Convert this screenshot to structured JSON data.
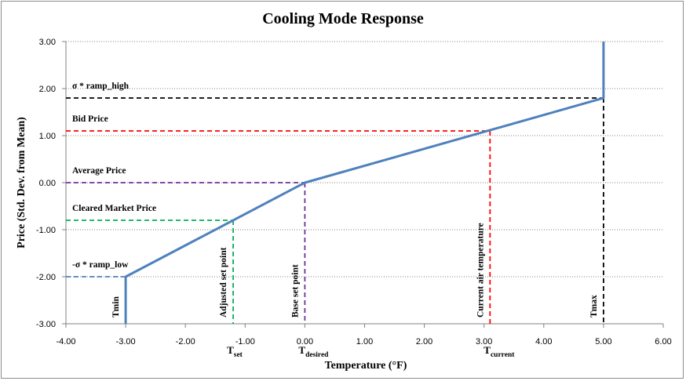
{
  "chart_data": {
    "type": "line",
    "title": "Cooling Mode Response",
    "xlabel": "Temperature (°F)",
    "ylabel": "Price (Std. Dev. from Mean)",
    "xlim": [
      -4,
      6
    ],
    "ylim": [
      -3,
      3
    ],
    "x_ticks": [
      "-4.00",
      "-3.00",
      "-2.00",
      "-1.00",
      "0.00",
      "1.00",
      "2.00",
      "3.00",
      "4.00",
      "5.00",
      "6.00"
    ],
    "y_ticks": [
      "3.00",
      "2.00",
      "1.00",
      "0.00",
      "-1.00",
      "-2.00",
      "-3.00"
    ],
    "grid": "horizontal dotted",
    "series": [
      {
        "color": "#4f81bd",
        "points": [
          [
            -3.0,
            -3.0
          ],
          [
            -3.0,
            -2.0
          ],
          [
            0.0,
            0.0
          ],
          [
            5.0,
            1.8
          ],
          [
            5.0,
            3.0
          ]
        ]
      }
    ],
    "reference_lines": [
      {
        "label": "σ * ramp_high",
        "x": 5.0,
        "y": 1.8,
        "color": "#000000"
      },
      {
        "label": "Bid Price",
        "x": 3.1,
        "y": 1.1,
        "color": "#ff0000"
      },
      {
        "label": "Average Price",
        "x": 0.0,
        "y": 0.0,
        "color": "#7030a0"
      },
      {
        "label": "Cleared Market Price",
        "x": -1.2,
        "y": -0.8,
        "color": "#00b050"
      },
      {
        "label": "-σ * ramp_low",
        "x": -3.0,
        "y": -2.0,
        "color": "#4f81bd"
      }
    ],
    "vertical_annotations": [
      {
        "label": "Tmin",
        "x": -3.0
      },
      {
        "label": "Adjusted set point",
        "x": -1.2
      },
      {
        "label": "Base set point",
        "x": 0.0
      },
      {
        "label": "Current air temperature",
        "x": 3.1
      },
      {
        "label": "Tmax",
        "x": 5.0
      }
    ],
    "x_annotations": [
      {
        "base": "T",
        "sub": "set",
        "x": -1.2
      },
      {
        "base": "T",
        "sub": "desired",
        "x": 0.0
      },
      {
        "base": "T",
        "sub": "current",
        "x": 3.1
      }
    ]
  }
}
